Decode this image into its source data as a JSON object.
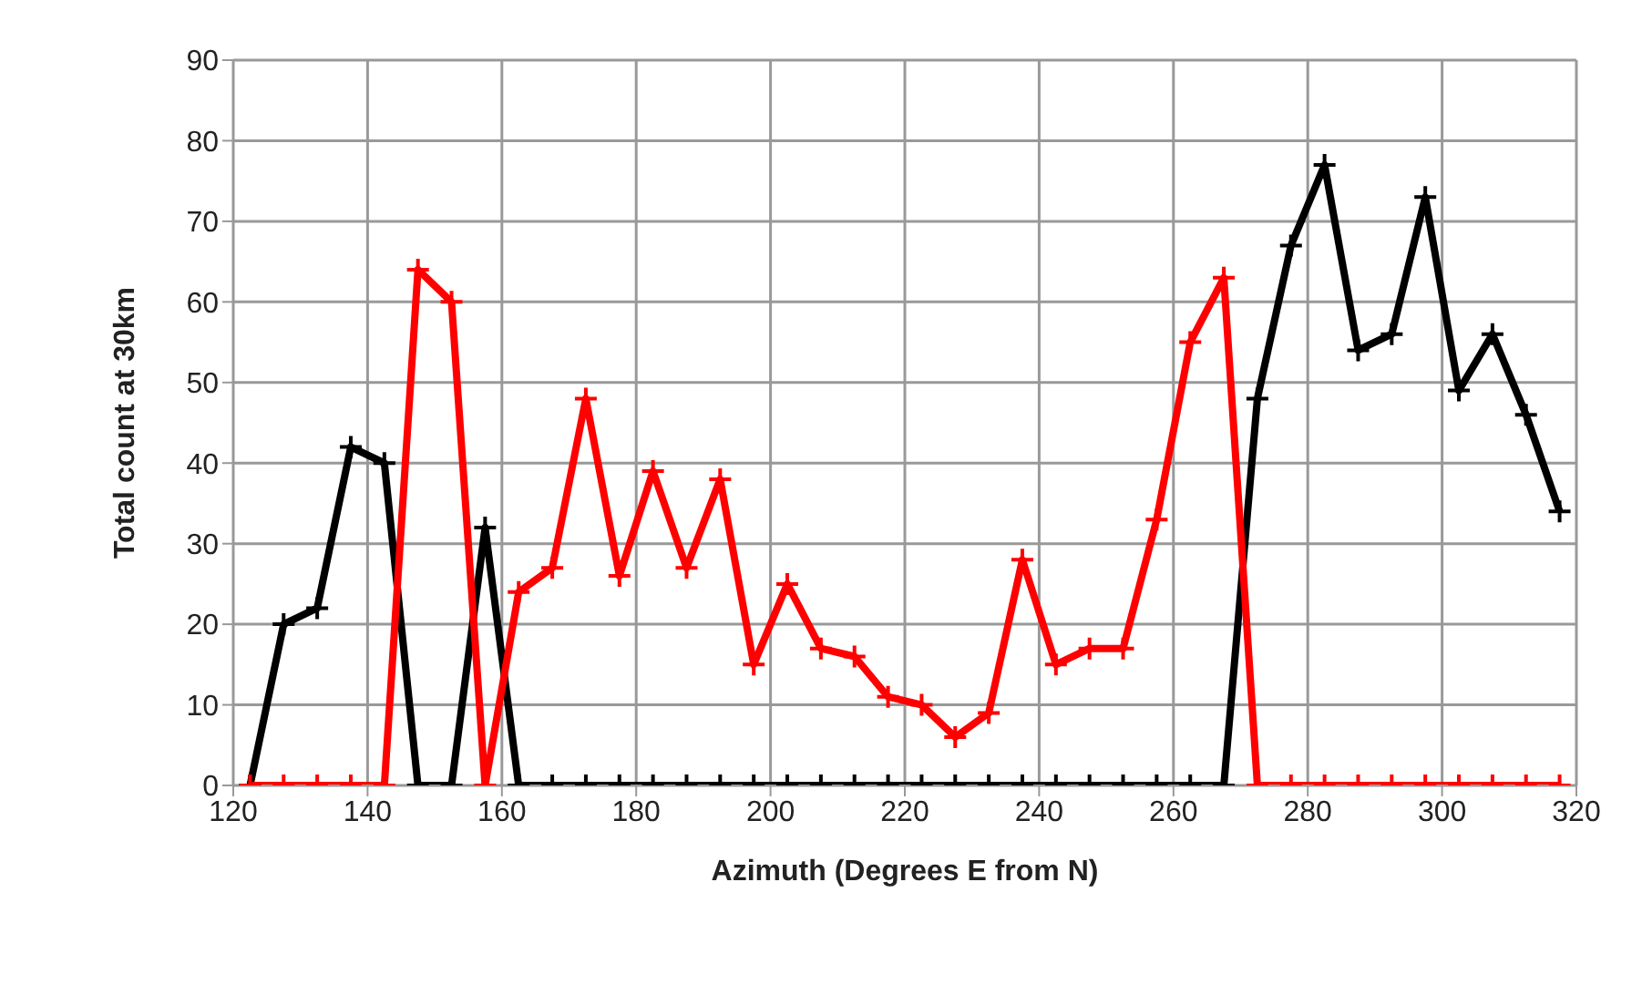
{
  "chart_data": {
    "type": "line",
    "xlabel": "Azimuth (Degrees E from N)",
    "ylabel": "Total count at 30km",
    "x": [
      122.5,
      127.5,
      132.5,
      137.5,
      142.5,
      147.5,
      152.5,
      157.5,
      162.5,
      167.5,
      172.5,
      177.5,
      182.5,
      187.5,
      192.5,
      197.5,
      202.5,
      207.5,
      212.5,
      217.5,
      222.5,
      227.5,
      232.5,
      237.5,
      242.5,
      247.5,
      252.5,
      257.5,
      262.5,
      267.5,
      272.5,
      277.5,
      282.5,
      287.5,
      292.5,
      297.5,
      302.5,
      307.5,
      312.5,
      317.5
    ],
    "series": [
      {
        "color": "#000000",
        "values": [
          0,
          20,
          22,
          42,
          40,
          0,
          0,
          32,
          0,
          0,
          0,
          0,
          0,
          0,
          0,
          0,
          0,
          0,
          0,
          0,
          0,
          0,
          0,
          0,
          0,
          0,
          0,
          0,
          0,
          0,
          48,
          67,
          77,
          54,
          56,
          73,
          49,
          56,
          46,
          34
        ]
      },
      {
        "color": "#ff0000",
        "values": [
          0,
          0,
          0,
          0,
          0,
          64,
          60,
          0,
          24,
          27,
          48,
          26,
          39,
          27,
          38,
          15,
          25,
          17,
          16,
          11,
          10,
          6,
          9,
          28,
          15,
          17,
          17,
          33,
          55,
          63,
          0,
          0,
          0,
          0,
          0,
          0,
          0,
          0,
          0,
          0
        ]
      }
    ],
    "xlim": [
      120,
      320
    ],
    "xticks": [
      120,
      140,
      160,
      180,
      200,
      220,
      240,
      260,
      280,
      300,
      320
    ],
    "ylim": [
      0,
      90
    ],
    "yticks": [
      0,
      10,
      20,
      30,
      40,
      50,
      60,
      70,
      80,
      90
    ],
    "grid": true,
    "legend": false,
    "marker": "cross",
    "line_style": "solid"
  }
}
